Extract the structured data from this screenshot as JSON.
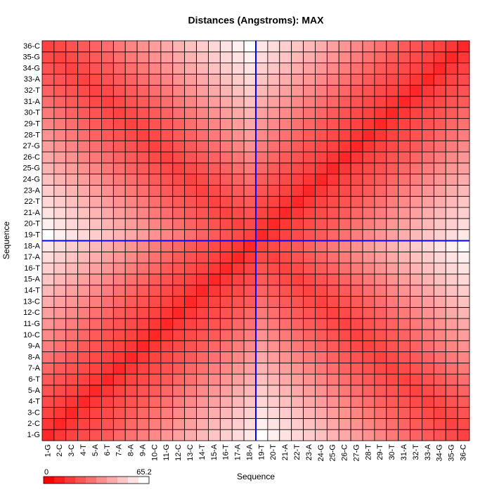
{
  "chart_data": {
    "type": "heatmap",
    "title": "Distances (Angstroms):  MAX",
    "xlabel": "Sequence",
    "ylabel": "Sequence",
    "categories": [
      "1-G",
      "2-C",
      "3-C",
      "4-T",
      "5-A",
      "6-T",
      "7-A",
      "8-A",
      "9-A",
      "10-C",
      "11-G",
      "12-C",
      "13-C",
      "14-T",
      "15-A",
      "16-T",
      "17-A",
      "18-A",
      "19-T",
      "20-T",
      "21-A",
      "22-T",
      "23-A",
      "24-G",
      "25-G",
      "26-C",
      "27-G",
      "28-T",
      "29-T",
      "30-T",
      "31-A",
      "32-T",
      "33-A",
      "34-G",
      "35-G",
      "36-C"
    ],
    "zlim": [
      0,
      65.2
    ],
    "low_color": "#ff0000",
    "high_color": "#ffffff",
    "highlight_color": "#0000ff",
    "values": [
      [
        10,
        14,
        17,
        19,
        21,
        23,
        26,
        29,
        32,
        35,
        38,
        41,
        44,
        47,
        50,
        53,
        56,
        59,
        65.2,
        61,
        58,
        55,
        52,
        49,
        46,
        43,
        40,
        37,
        34,
        31,
        28,
        25,
        23,
        21,
        19,
        17
      ],
      [
        14,
        10,
        14,
        17,
        19,
        21,
        23,
        26,
        29,
        32,
        35,
        38,
        41,
        44,
        47,
        50,
        53,
        56,
        61,
        58,
        55,
        52,
        49,
        46,
        43,
        40,
        37,
        34,
        31,
        28,
        25,
        23,
        21,
        19,
        17,
        19
      ],
      [
        17,
        14,
        10,
        14,
        17,
        19,
        21,
        23,
        26,
        29,
        32,
        35,
        38,
        41,
        44,
        47,
        50,
        53,
        58,
        55,
        52,
        49,
        46,
        43,
        40,
        37,
        34,
        31,
        28,
        25,
        23,
        21,
        19,
        17,
        19,
        21
      ],
      [
        19,
        17,
        14,
        10,
        14,
        17,
        19,
        21,
        23,
        26,
        29,
        32,
        35,
        38,
        41,
        44,
        47,
        50,
        55,
        52,
        49,
        46,
        43,
        40,
        37,
        34,
        31,
        28,
        25,
        23,
        21,
        19,
        17,
        19,
        21,
        23
      ],
      [
        21,
        19,
        17,
        14,
        10,
        14,
        17,
        19,
        21,
        23,
        26,
        29,
        32,
        35,
        38,
        41,
        44,
        47,
        52,
        49,
        46,
        43,
        40,
        37,
        34,
        31,
        28,
        25,
        23,
        21,
        19,
        17,
        19,
        21,
        23,
        25
      ],
      [
        23,
        21,
        19,
        17,
        14,
        10,
        14,
        17,
        19,
        21,
        23,
        26,
        29,
        32,
        35,
        38,
        41,
        44,
        49,
        46,
        43,
        40,
        37,
        34,
        31,
        28,
        25,
        23,
        21,
        19,
        17,
        19,
        21,
        23,
        25,
        28
      ],
      [
        26,
        23,
        21,
        19,
        17,
        14,
        10,
        14,
        17,
        19,
        21,
        23,
        26,
        29,
        32,
        35,
        38,
        41,
        46,
        43,
        40,
        37,
        34,
        31,
        28,
        25,
        23,
        21,
        19,
        17,
        19,
        21,
        23,
        25,
        28,
        31
      ],
      [
        29,
        26,
        23,
        21,
        19,
        17,
        14,
        10,
        14,
        17,
        19,
        21,
        23,
        26,
        29,
        32,
        35,
        38,
        43,
        40,
        37,
        34,
        31,
        28,
        25,
        23,
        21,
        19,
        17,
        19,
        21,
        23,
        25,
        28,
        31,
        34
      ],
      [
        32,
        29,
        26,
        23,
        21,
        19,
        17,
        14,
        10,
        14,
        17,
        19,
        21,
        23,
        26,
        29,
        32,
        35,
        40,
        37,
        34,
        31,
        28,
        25,
        23,
        21,
        19,
        17,
        19,
        21,
        23,
        25,
        28,
        31,
        34,
        37
      ],
      [
        35,
        32,
        29,
        26,
        23,
        21,
        19,
        17,
        14,
        10,
        14,
        17,
        19,
        21,
        23,
        26,
        29,
        32,
        37,
        34,
        31,
        28,
        25,
        23,
        21,
        19,
        17,
        19,
        21,
        23,
        25,
        28,
        31,
        34,
        37,
        40
      ],
      [
        38,
        35,
        32,
        29,
        26,
        23,
        21,
        19,
        17,
        14,
        10,
        14,
        17,
        19,
        21,
        23,
        26,
        29,
        34,
        31,
        28,
        25,
        23,
        21,
        19,
        17,
        19,
        21,
        23,
        25,
        28,
        31,
        34,
        37,
        40,
        43
      ],
      [
        41,
        38,
        35,
        32,
        29,
        26,
        23,
        21,
        19,
        17,
        14,
        10,
        14,
        17,
        19,
        21,
        23,
        26,
        31,
        28,
        25,
        23,
        21,
        19,
        17,
        19,
        21,
        23,
        25,
        28,
        31,
        34,
        37,
        40,
        43,
        46
      ],
      [
        44,
        41,
        38,
        35,
        32,
        29,
        26,
        23,
        21,
        19,
        17,
        14,
        10,
        14,
        17,
        19,
        21,
        23,
        28,
        25,
        23,
        21,
        19,
        17,
        19,
        21,
        23,
        25,
        28,
        31,
        34,
        37,
        40,
        43,
        46,
        49
      ],
      [
        47,
        44,
        41,
        38,
        35,
        32,
        29,
        26,
        23,
        21,
        19,
        17,
        14,
        10,
        14,
        17,
        19,
        21,
        25,
        23,
        21,
        19,
        17,
        19,
        21,
        23,
        25,
        28,
        31,
        34,
        37,
        40,
        43,
        46,
        49,
        52
      ],
      [
        50,
        47,
        44,
        41,
        38,
        35,
        32,
        29,
        26,
        23,
        21,
        19,
        17,
        14,
        10,
        14,
        17,
        19,
        23,
        21,
        19,
        17,
        19,
        21,
        23,
        25,
        28,
        31,
        34,
        37,
        40,
        43,
        46,
        49,
        52,
        55
      ],
      [
        53,
        50,
        47,
        44,
        41,
        38,
        35,
        32,
        29,
        26,
        23,
        21,
        19,
        17,
        14,
        10,
        14,
        17,
        21,
        19,
        17,
        19,
        21,
        23,
        25,
        28,
        31,
        34,
        37,
        40,
        43,
        46,
        49,
        52,
        55,
        58
      ],
      [
        56,
        53,
        50,
        47,
        44,
        41,
        38,
        35,
        32,
        29,
        26,
        23,
        21,
        19,
        17,
        14,
        10,
        14,
        19,
        17,
        19,
        21,
        23,
        25,
        28,
        31,
        34,
        37,
        40,
        43,
        46,
        49,
        52,
        55,
        58,
        61
      ],
      [
        59,
        56,
        53,
        50,
        47,
        44,
        41,
        38,
        35,
        32,
        29,
        26,
        23,
        21,
        19,
        17,
        14,
        10,
        17,
        19,
        21,
        23,
        25,
        28,
        31,
        34,
        37,
        40,
        43,
        46,
        49,
        52,
        55,
        58,
        61,
        65.2
      ],
      [
        65.2,
        61,
        58,
        55,
        52,
        49,
        46,
        43,
        40,
        37,
        34,
        31,
        28,
        25,
        23,
        21,
        19,
        17,
        10,
        14,
        17,
        19,
        21,
        23,
        26,
        29,
        32,
        35,
        38,
        41,
        44,
        47,
        50,
        53,
        56,
        59
      ],
      [
        61,
        58,
        55,
        52,
        49,
        46,
        43,
        40,
        37,
        34,
        31,
        28,
        25,
        23,
        21,
        19,
        17,
        19,
        14,
        10,
        14,
        17,
        19,
        21,
        23,
        26,
        29,
        32,
        35,
        38,
        41,
        44,
        47,
        50,
        53,
        56
      ],
      [
        58,
        55,
        52,
        49,
        46,
        43,
        40,
        37,
        34,
        31,
        28,
        25,
        23,
        21,
        19,
        17,
        19,
        21,
        17,
        14,
        10,
        14,
        17,
        19,
        21,
        23,
        26,
        29,
        32,
        35,
        38,
        41,
        44,
        47,
        50,
        53
      ],
      [
        55,
        52,
        49,
        46,
        43,
        40,
        37,
        34,
        31,
        28,
        25,
        23,
        21,
        19,
        17,
        19,
        21,
        23,
        19,
        17,
        14,
        10,
        14,
        17,
        19,
        21,
        23,
        26,
        29,
        32,
        35,
        38,
        41,
        44,
        47,
        50
      ],
      [
        52,
        49,
        46,
        43,
        40,
        37,
        34,
        31,
        28,
        25,
        23,
        21,
        19,
        17,
        19,
        21,
        23,
        25,
        21,
        19,
        17,
        14,
        10,
        14,
        17,
        19,
        21,
        23,
        26,
        29,
        32,
        35,
        38,
        41,
        44,
        47
      ],
      [
        49,
        46,
        43,
        40,
        37,
        34,
        31,
        28,
        25,
        23,
        21,
        19,
        17,
        19,
        21,
        23,
        25,
        28,
        23,
        21,
        19,
        17,
        14,
        10,
        14,
        17,
        19,
        21,
        23,
        26,
        29,
        32,
        35,
        38,
        41,
        44
      ],
      [
        46,
        43,
        40,
        37,
        34,
        31,
        28,
        25,
        23,
        21,
        19,
        17,
        19,
        21,
        23,
        25,
        28,
        31,
        26,
        23,
        21,
        19,
        17,
        14,
        10,
        14,
        17,
        19,
        21,
        23,
        26,
        29,
        32,
        35,
        38,
        41
      ],
      [
        43,
        40,
        37,
        34,
        31,
        28,
        25,
        23,
        21,
        19,
        17,
        19,
        21,
        23,
        25,
        28,
        31,
        34,
        29,
        26,
        23,
        21,
        19,
        17,
        14,
        10,
        14,
        17,
        19,
        21,
        23,
        26,
        29,
        32,
        35,
        38
      ],
      [
        40,
        37,
        34,
        31,
        28,
        25,
        23,
        21,
        19,
        17,
        19,
        21,
        23,
        25,
        28,
        31,
        34,
        37,
        32,
        29,
        26,
        23,
        21,
        19,
        17,
        14,
        10,
        14,
        17,
        19,
        21,
        23,
        26,
        29,
        32,
        35
      ],
      [
        37,
        34,
        31,
        28,
        25,
        23,
        21,
        19,
        17,
        19,
        21,
        23,
        25,
        28,
        31,
        34,
        37,
        40,
        35,
        32,
        29,
        26,
        23,
        21,
        19,
        17,
        14,
        10,
        14,
        17,
        19,
        21,
        23,
        26,
        29,
        32
      ],
      [
        34,
        31,
        28,
        25,
        23,
        21,
        19,
        17,
        19,
        21,
        23,
        25,
        28,
        31,
        34,
        37,
        40,
        43,
        38,
        35,
        32,
        29,
        26,
        23,
        21,
        19,
        17,
        14,
        10,
        14,
        17,
        19,
        21,
        23,
        26,
        29
      ],
      [
        31,
        28,
        25,
        23,
        21,
        19,
        17,
        19,
        21,
        23,
        25,
        28,
        31,
        34,
        37,
        40,
        43,
        46,
        41,
        38,
        35,
        32,
        29,
        26,
        23,
        21,
        19,
        17,
        14,
        10,
        14,
        17,
        19,
        21,
        23,
        26
      ],
      [
        28,
        25,
        23,
        21,
        19,
        17,
        19,
        21,
        23,
        25,
        28,
        31,
        34,
        37,
        40,
        43,
        46,
        49,
        44,
        41,
        38,
        35,
        32,
        29,
        26,
        23,
        21,
        19,
        17,
        14,
        10,
        14,
        17,
        19,
        21,
        23
      ],
      [
        25,
        23,
        21,
        19,
        17,
        19,
        21,
        23,
        25,
        28,
        31,
        34,
        37,
        40,
        43,
        46,
        49,
        52,
        47,
        44,
        41,
        38,
        35,
        32,
        29,
        26,
        23,
        21,
        19,
        17,
        14,
        10,
        14,
        17,
        19,
        21
      ],
      [
        23,
        21,
        19,
        17,
        19,
        21,
        23,
        25,
        28,
        31,
        34,
        37,
        40,
        43,
        46,
        49,
        52,
        55,
        50,
        47,
        44,
        41,
        38,
        35,
        32,
        29,
        26,
        23,
        21,
        19,
        17,
        14,
        10,
        14,
        17,
        19
      ],
      [
        21,
        19,
        17,
        19,
        21,
        23,
        25,
        28,
        31,
        34,
        37,
        40,
        43,
        46,
        49,
        52,
        55,
        58,
        53,
        50,
        47,
        44,
        41,
        38,
        35,
        32,
        29,
        26,
        23,
        21,
        19,
        17,
        14,
        10,
        14,
        17
      ],
      [
        19,
        17,
        19,
        21,
        23,
        25,
        28,
        31,
        34,
        37,
        40,
        43,
        46,
        49,
        52,
        55,
        58,
        61,
        56,
        53,
        50,
        47,
        44,
        41,
        38,
        35,
        32,
        29,
        26,
        23,
        21,
        19,
        17,
        14,
        10,
        14
      ],
      [
        17,
        19,
        21,
        23,
        25,
        28,
        31,
        34,
        37,
        40,
        43,
        46,
        49,
        52,
        55,
        58,
        61,
        65.2,
        59,
        56,
        53,
        50,
        47,
        44,
        41,
        38,
        35,
        32,
        29,
        26,
        23,
        21,
        19,
        17,
        14,
        10
      ]
    ]
  }
}
